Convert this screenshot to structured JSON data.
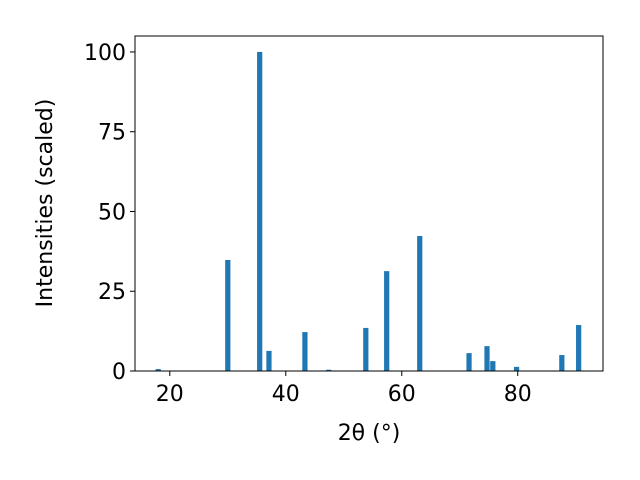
{
  "chart_data": {
    "type": "bar",
    "x_label": "2θ (°)",
    "y_label": "Intensities (scaled)",
    "x": [
      18.0,
      30.0,
      35.5,
      37.1,
      43.3,
      47.4,
      53.8,
      57.4,
      63.1,
      71.6,
      74.7,
      75.7,
      79.8,
      87.6,
      90.5
    ],
    "values": [
      0.6,
      34.8,
      100,
      6.3,
      12.2,
      0.4,
      13.5,
      31.3,
      42.3,
      5.6,
      7.8,
      3.1,
      1.3,
      5.0,
      14.4
    ],
    "color": "#1f77b4",
    "xlim": [
      14,
      94.7
    ],
    "ylim": [
      0,
      105
    ],
    "xticks": [
      20,
      40,
      60,
      80
    ],
    "yticks": [
      0,
      25,
      50,
      75,
      100
    ]
  }
}
